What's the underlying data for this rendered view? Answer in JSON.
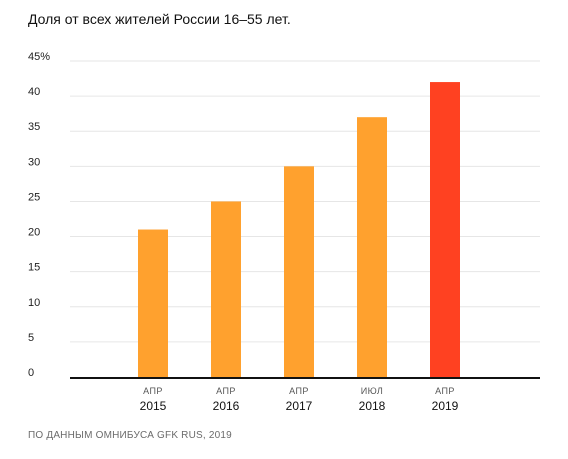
{
  "chart_data": {
    "type": "bar",
    "title": "Доля от всех жителей России 16–55 лет.",
    "source": "ПО ДАННЫМ ОМНИБУСА GFK RUS, 2019",
    "categories": [
      {
        "month": "АПР",
        "year": "2015"
      },
      {
        "month": "АПР",
        "year": "2016"
      },
      {
        "month": "АПР",
        "year": "2017"
      },
      {
        "month": "ИЮЛ",
        "year": "2018"
      },
      {
        "month": "АПР",
        "year": "2019"
      }
    ],
    "values": [
      21,
      25,
      30,
      37,
      42
    ],
    "y_ticks": [
      "0",
      "5",
      "10",
      "15",
      "20",
      "25",
      "30",
      "35",
      "40",
      "45%"
    ],
    "ylim": [
      0,
      45
    ],
    "grid": true,
    "colors": {
      "bar": "#ffa12e",
      "highlight": "#ff4121",
      "grid": "#e6e6e6",
      "axis": "#111111"
    },
    "highlight_index": 4
  }
}
